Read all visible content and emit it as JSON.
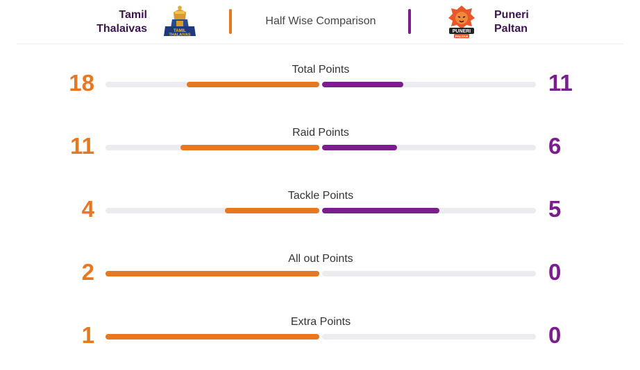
{
  "header": {
    "title": "Half Wise Comparison",
    "team_left": {
      "line1": "Tamil",
      "line2": "Thalaivas",
      "color": "#e87722",
      "logo": "tamil-thalaivas-logo"
    },
    "team_right": {
      "line1": "Puneri",
      "line2": "Paltan",
      "color": "#7a1e8e",
      "logo": "puneri-paltan-logo"
    }
  },
  "stats": [
    {
      "label": "Total Points",
      "left": 18,
      "right": 11,
      "left_fill": 0.62,
      "right_fill": 0.38
    },
    {
      "label": "Raid Points",
      "left": 11,
      "right": 6,
      "left_fill": 0.65,
      "right_fill": 0.35
    },
    {
      "label": "Tackle Points",
      "left": 4,
      "right": 5,
      "left_fill": 0.44,
      "right_fill": 0.55
    },
    {
      "label": "All out Points",
      "left": 2,
      "right": 0,
      "left_fill": 1.0,
      "right_fill": 0.0
    },
    {
      "label": "Extra Points",
      "left": 1,
      "right": 0,
      "left_fill": 1.0,
      "right_fill": 0.0
    }
  ],
  "chart_data": {
    "type": "bar",
    "title": "Half Wise Comparison",
    "categories": [
      "Total Points",
      "Raid Points",
      "Tackle Points",
      "All out Points",
      "Extra Points"
    ],
    "series": [
      {
        "name": "Tamil Thalaivas",
        "values": [
          18,
          11,
          4,
          2,
          1
        ],
        "color": "#e87722"
      },
      {
        "name": "Puneri Paltan",
        "values": [
          11,
          6,
          5,
          0,
          0
        ],
        "color": "#7a1e8e"
      }
    ]
  }
}
